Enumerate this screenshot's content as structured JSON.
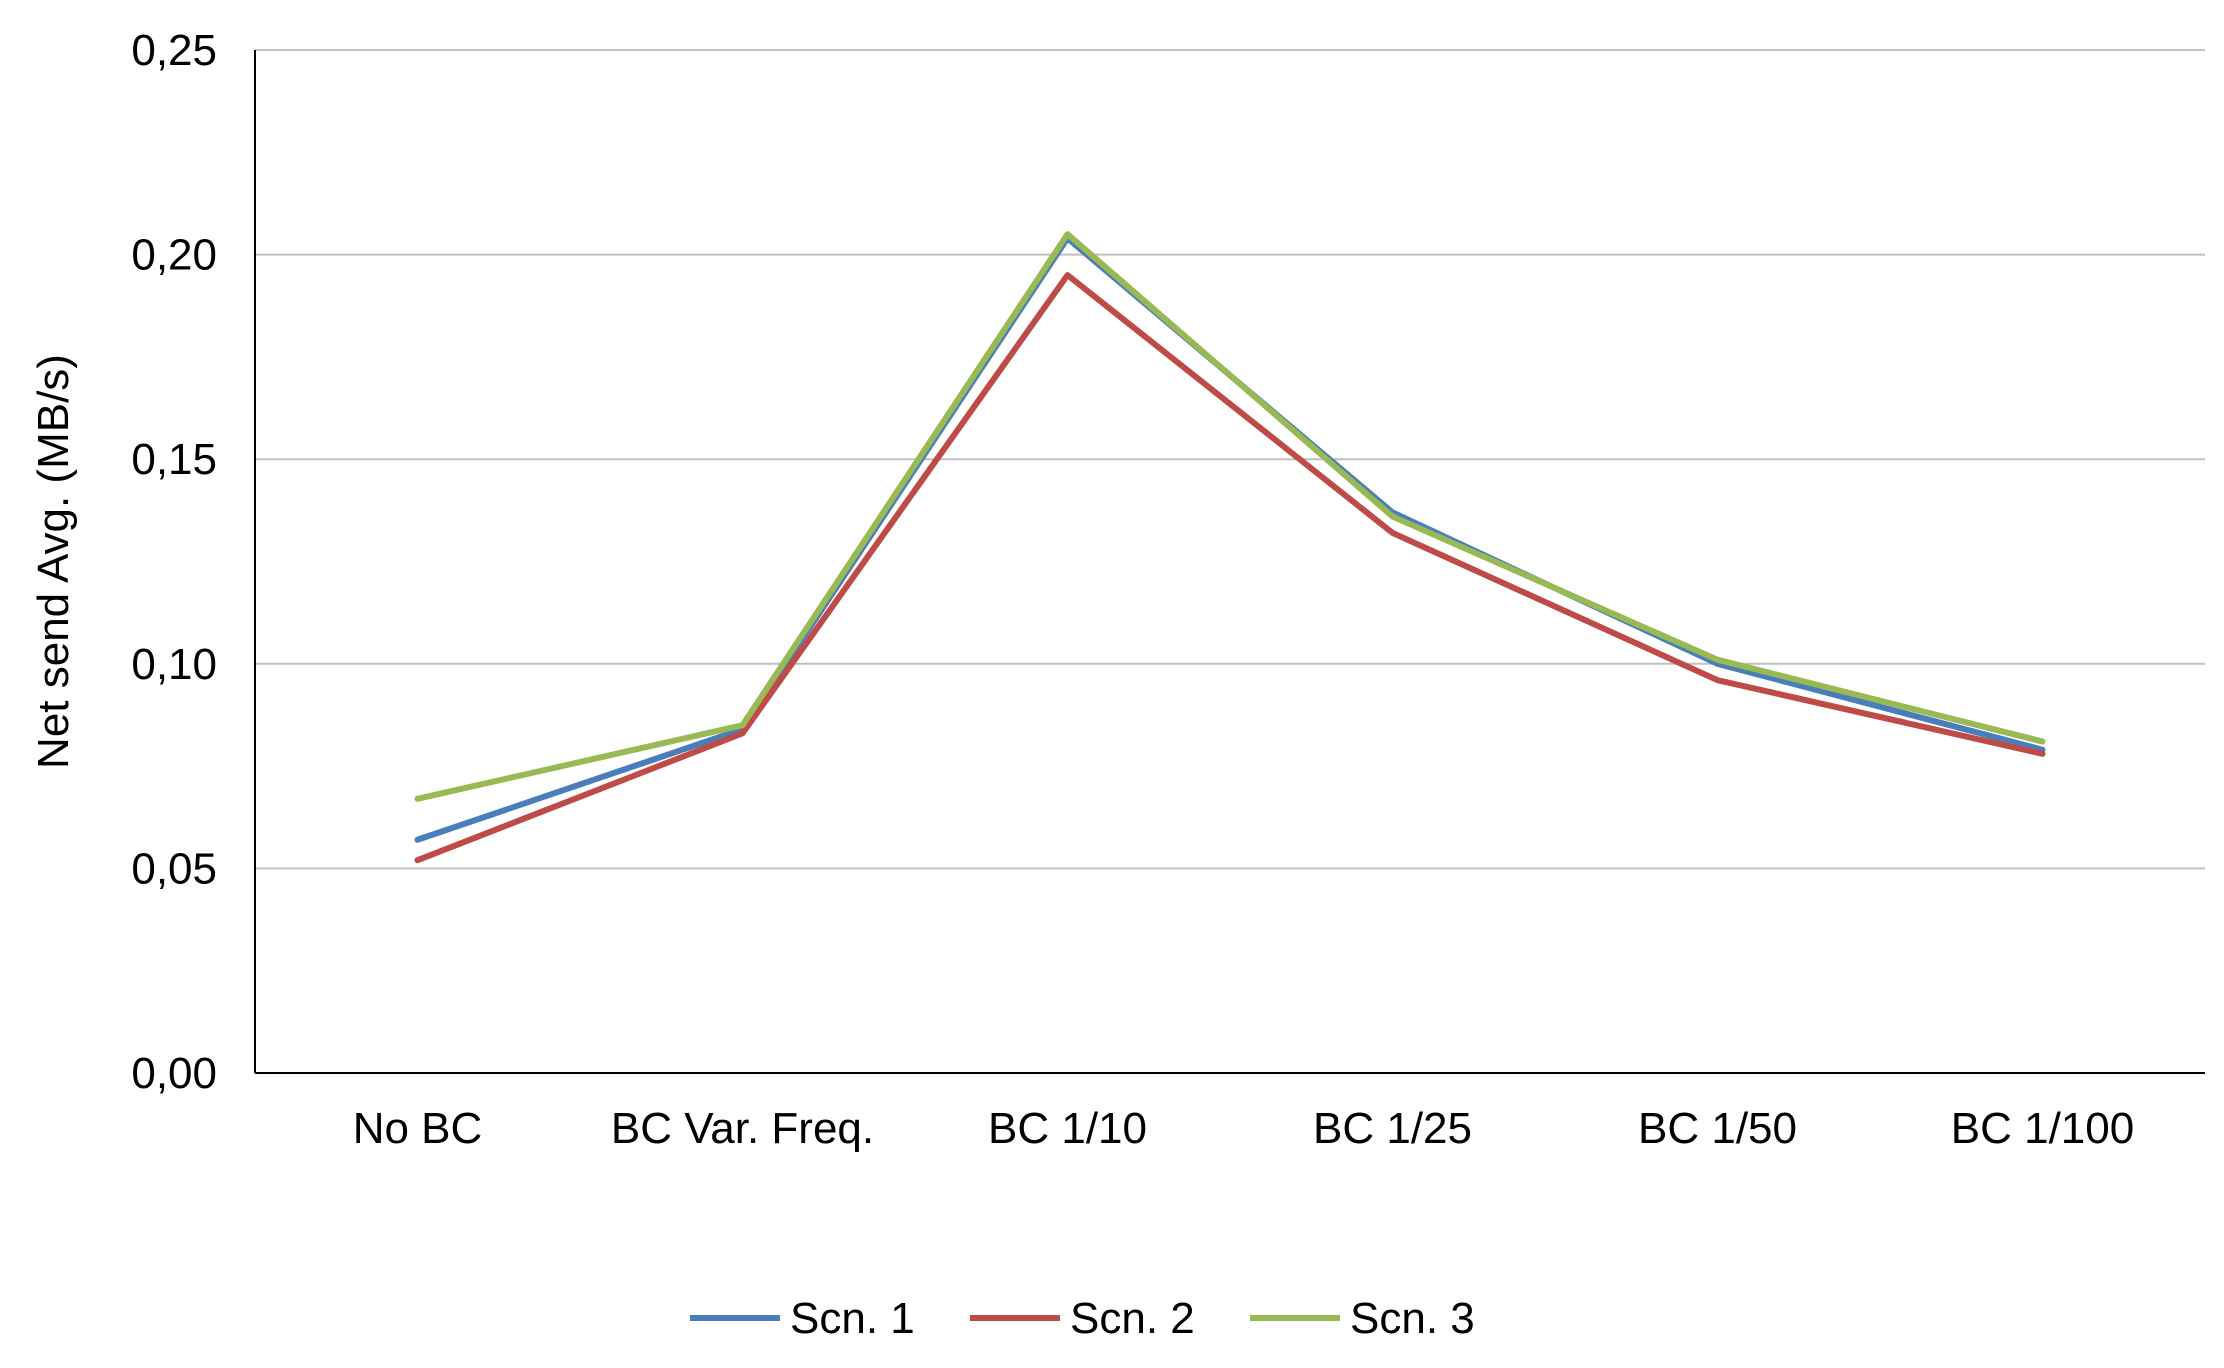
{
  "chart_data": {
    "type": "line",
    "title": "",
    "xlabel": "",
    "ylabel": "Net send Avg. (MB/s)",
    "categories": [
      "No BC",
      "BC Var. Freq.",
      "BC 1/10",
      "BC 1/25",
      "BC 1/50",
      "BC 1/100"
    ],
    "ylim": [
      0,
      0.25
    ],
    "yticks": [
      0,
      0.05,
      0.1,
      0.15,
      0.2,
      0.25
    ],
    "ytick_labels": [
      "0,00",
      "0,05",
      "0,10",
      "0,15",
      "0,20",
      "0,25"
    ],
    "grid": "horizontal",
    "legend_position": "bottom",
    "series": [
      {
        "name": "Scn. 1",
        "color": "#4a7ebb",
        "values": [
          0.057,
          0.084,
          0.204,
          0.137,
          0.1,
          0.079
        ]
      },
      {
        "name": "Scn. 2",
        "color": "#be4b48",
        "values": [
          0.052,
          0.083,
          0.195,
          0.132,
          0.096,
          0.078
        ]
      },
      {
        "name": "Scn. 3",
        "color": "#98b954",
        "values": [
          0.067,
          0.085,
          0.205,
          0.136,
          0.101,
          0.081
        ]
      }
    ]
  }
}
